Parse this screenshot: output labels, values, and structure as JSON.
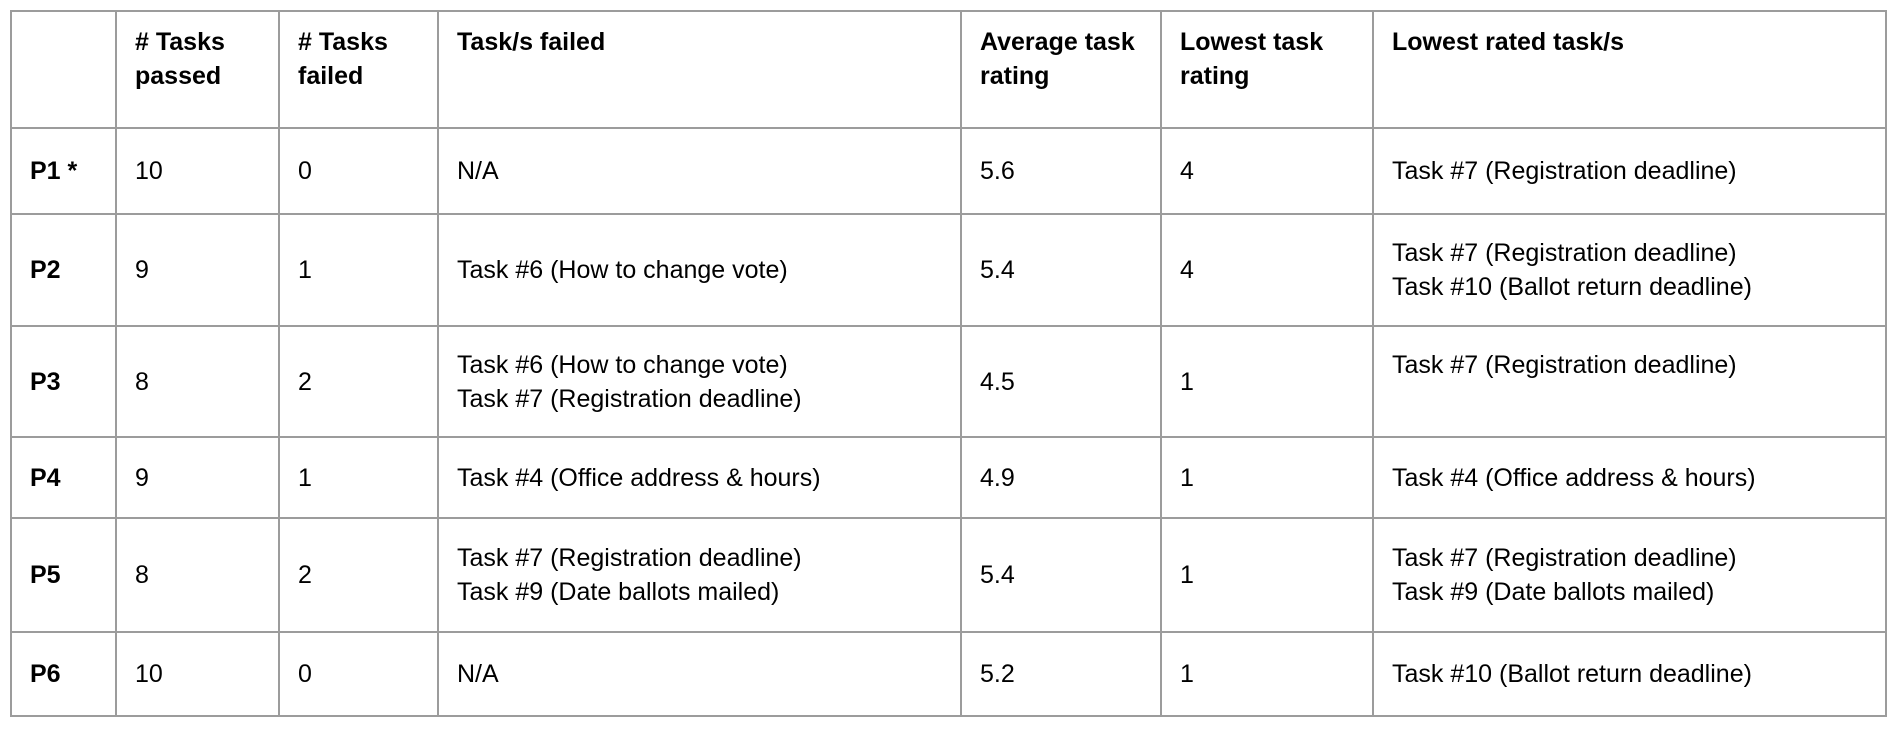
{
  "table": {
    "columns": [
      "",
      "# Tasks passed",
      "# Tasks failed",
      "Task/s failed",
      "Average task rating",
      "Lowest task rating",
      "Lowest rated task/s"
    ],
    "rows": [
      {
        "label": "P1 *",
        "tasks_passed": "10",
        "tasks_failed": "0",
        "failed_tasks": [
          "N/A"
        ],
        "avg_rating": "5.6",
        "lowest_rating": "4",
        "lowest_rated": [
          "Task #7 (Registration deadline)"
        ]
      },
      {
        "label": "P2",
        "tasks_passed": "9",
        "tasks_failed": "1",
        "failed_tasks": [
          "Task #6 (How to change vote)"
        ],
        "avg_rating": "5.4",
        "lowest_rating": "4",
        "lowest_rated": [
          "Task #7 (Registration deadline)",
          "Task #10 (Ballot return deadline)"
        ]
      },
      {
        "label": "P3",
        "tasks_passed": "8",
        "tasks_failed": "2",
        "failed_tasks": [
          "Task #6 (How to change vote)",
          "Task #7 (Registration deadline)"
        ],
        "avg_rating": "4.5",
        "lowest_rating": "1",
        "lowest_rated": [
          "Task #7 (Registration deadline)",
          ""
        ]
      },
      {
        "label": "P4",
        "tasks_passed": "9",
        "tasks_failed": "1",
        "failed_tasks": [
          "Task #4 (Office address & hours)"
        ],
        "avg_rating": "4.9",
        "lowest_rating": "1",
        "lowest_rated": [
          "Task #4 (Office address & hours)"
        ]
      },
      {
        "label": "P5",
        "tasks_passed": "8",
        "tasks_failed": "2",
        "failed_tasks": [
          "Task #7 (Registration deadline)",
          "Task #9 (Date ballots mailed)"
        ],
        "avg_rating": "5.4",
        "lowest_rating": "1",
        "lowest_rated": [
          "Task #7 (Registration deadline)",
          "Task #9 (Date ballots mailed)"
        ]
      },
      {
        "label": "P6",
        "tasks_passed": "10",
        "tasks_failed": "0",
        "failed_tasks": [
          "N/A"
        ],
        "avg_rating": "5.2",
        "lowest_rating": "1",
        "lowest_rated": [
          "Task #10 (Ballot return deadline)"
        ]
      }
    ],
    "colors": {
      "border": "#9c9c9c",
      "text": "#000000",
      "background": "#ffffff"
    }
  }
}
